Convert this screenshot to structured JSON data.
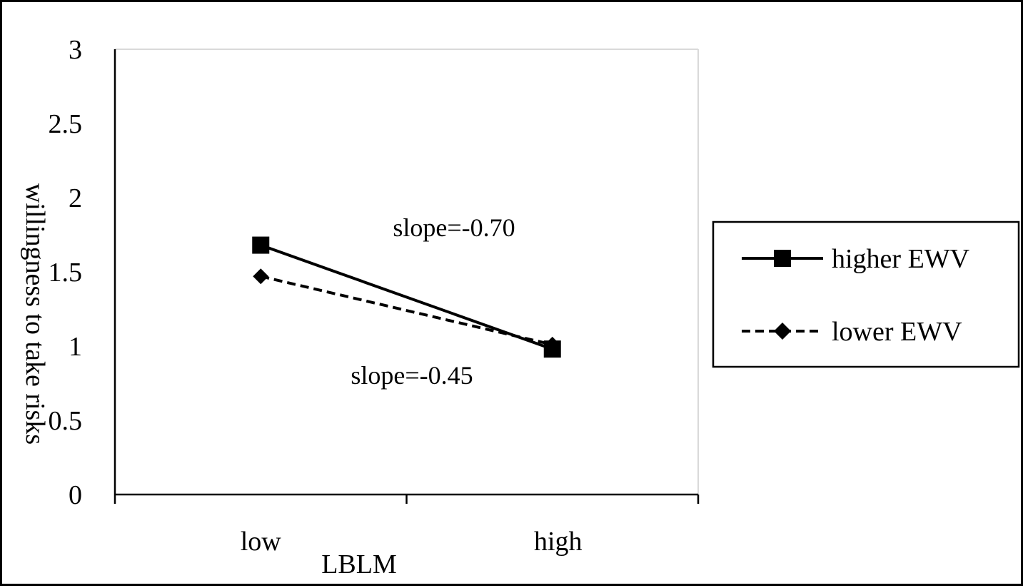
{
  "chart_data": {
    "type": "line",
    "title": "",
    "xlabel": "LBLM",
    "ylabel": "willingness to take risks",
    "categories": [
      "low",
      "high"
    ],
    "ylim": [
      0,
      3
    ],
    "yticks": [
      "0",
      "0.5",
      "1",
      "1.5",
      "2",
      "2.5",
      "3"
    ],
    "grid": false,
    "legend_position": "right",
    "series": [
      {
        "name": "higher EWV",
        "values": [
          1.68,
          0.98
        ],
        "line": "solid",
        "marker": "square",
        "color": "#000000"
      },
      {
        "name": "lower EWV",
        "values": [
          1.47,
          1.01
        ],
        "line": "dashed",
        "marker": "diamond",
        "color": "#000000"
      }
    ],
    "annotations": [
      {
        "text": "slope=-0.70"
      },
      {
        "text": "slope=-0.45"
      }
    ]
  }
}
